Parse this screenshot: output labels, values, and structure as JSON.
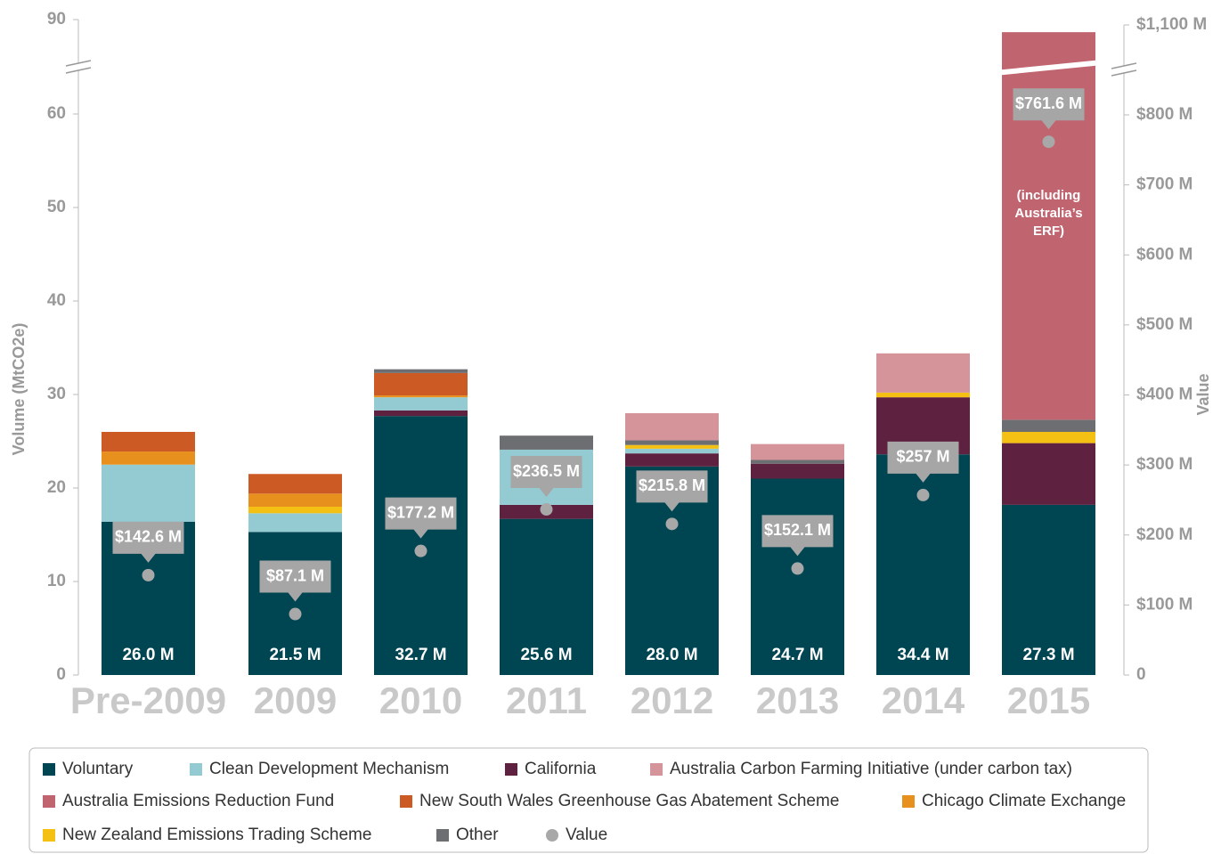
{
  "chart_data": {
    "type": "bar",
    "stacked": true,
    "categories": [
      "Pre-2009",
      "2009",
      "2010",
      "2011",
      "2012",
      "2013",
      "2014",
      "2015"
    ],
    "series": [
      {
        "name": "Voluntary",
        "color": "#004552",
        "values": [
          16.4,
          15.3,
          27.7,
          16.7,
          22.3,
          21.0,
          23.6,
          18.2
        ]
      },
      {
        "name": "California",
        "color": "#5e2240",
        "values": [
          0,
          0,
          0.6,
          1.5,
          1.4,
          1.6,
          6.1,
          6.6
        ]
      },
      {
        "name": "Clean Development Mechanism",
        "color": "#94cbd3",
        "values": [
          6.1,
          2.0,
          1.4,
          5.9,
          0.5,
          0,
          0,
          0
        ]
      },
      {
        "name": "New Zealand Emissions Trading Scheme",
        "color": "#f5c014",
        "values": [
          0,
          0.7,
          0,
          0,
          0.4,
          0,
          0.5,
          1.2
        ]
      },
      {
        "name": "Chicago Climate Exchange",
        "color": "#e8901e",
        "values": [
          1.4,
          1.4,
          0.2,
          0,
          0,
          0,
          0,
          0
        ]
      },
      {
        "name": "New South Wales Greenhouse Gas Abatement Scheme",
        "color": "#cc5a25",
        "values": [
          2.1,
          2.1,
          2.4,
          0,
          0,
          0,
          0,
          0
        ]
      },
      {
        "name": "Other",
        "color": "#6d6e71",
        "values": [
          0,
          0,
          0.4,
          1.5,
          0.5,
          0.4,
          0,
          1.3
        ]
      },
      {
        "name": "Australia Carbon Farming Initiative (under carbon tax)",
        "color": "#d4949a",
        "values": [
          0,
          0,
          0,
          0,
          2.9,
          1.7,
          4.2,
          0
        ]
      },
      {
        "name": "Australia Emissions Reduction Fund",
        "color": "#c06470",
        "values": [
          0,
          0,
          0,
          0,
          0,
          0,
          0,
          58.7
        ]
      }
    ],
    "value_series": {
      "name": "Value",
      "color": "#a8a8a8",
      "axis": "y2",
      "values": [
        142.6,
        87.1,
        177.2,
        236.5,
        215.8,
        152.1,
        257,
        761.6
      ],
      "value_labels": [
        "$142.6 M",
        "$87.1 M",
        "$177.2 M",
        "$236.5 M",
        "$215.8 M",
        "$152.1 M",
        "$257 M",
        "$761.6 M"
      ]
    },
    "totals": {
      "values": [
        26.0,
        21.5,
        32.7,
        25.6,
        28.0,
        24.7,
        34.4,
        27.3
      ],
      "value_labels": [
        "26.0 M",
        "21.5 M",
        "32.7 M",
        "25.6 M",
        "28.0 M",
        "24.7 M",
        "34.4 M",
        "27.3 M"
      ]
    },
    "annotation": "(including Australia’s ERF)",
    "y_label": "Volume (MtCO2e)",
    "y2_label": "Value",
    "ylim": [
      0,
      90
    ],
    "yticks": [
      0,
      10,
      20,
      30,
      40,
      50,
      60,
      90
    ],
    "y_break": [
      60,
      90
    ],
    "y2lim": [
      0,
      1100
    ],
    "y2ticks": [
      0,
      {
        "value": 100,
        "label": "$100 M"
      },
      {
        "value": 200,
        "label": "$200 M"
      },
      {
        "value": 300,
        "label": "$300 M"
      },
      {
        "value": 400,
        "label": "$400 M"
      },
      {
        "value": 500,
        "label": "$500 M"
      },
      {
        "value": 600,
        "label": "$600 M"
      },
      {
        "value": 700,
        "label": "$700 M"
      },
      {
        "value": 800,
        "label": "$800 M"
      },
      {
        "value": 1100,
        "label": "$1,100 M"
      }
    ],
    "y2_break": [
      800,
      1100
    ]
  }
}
